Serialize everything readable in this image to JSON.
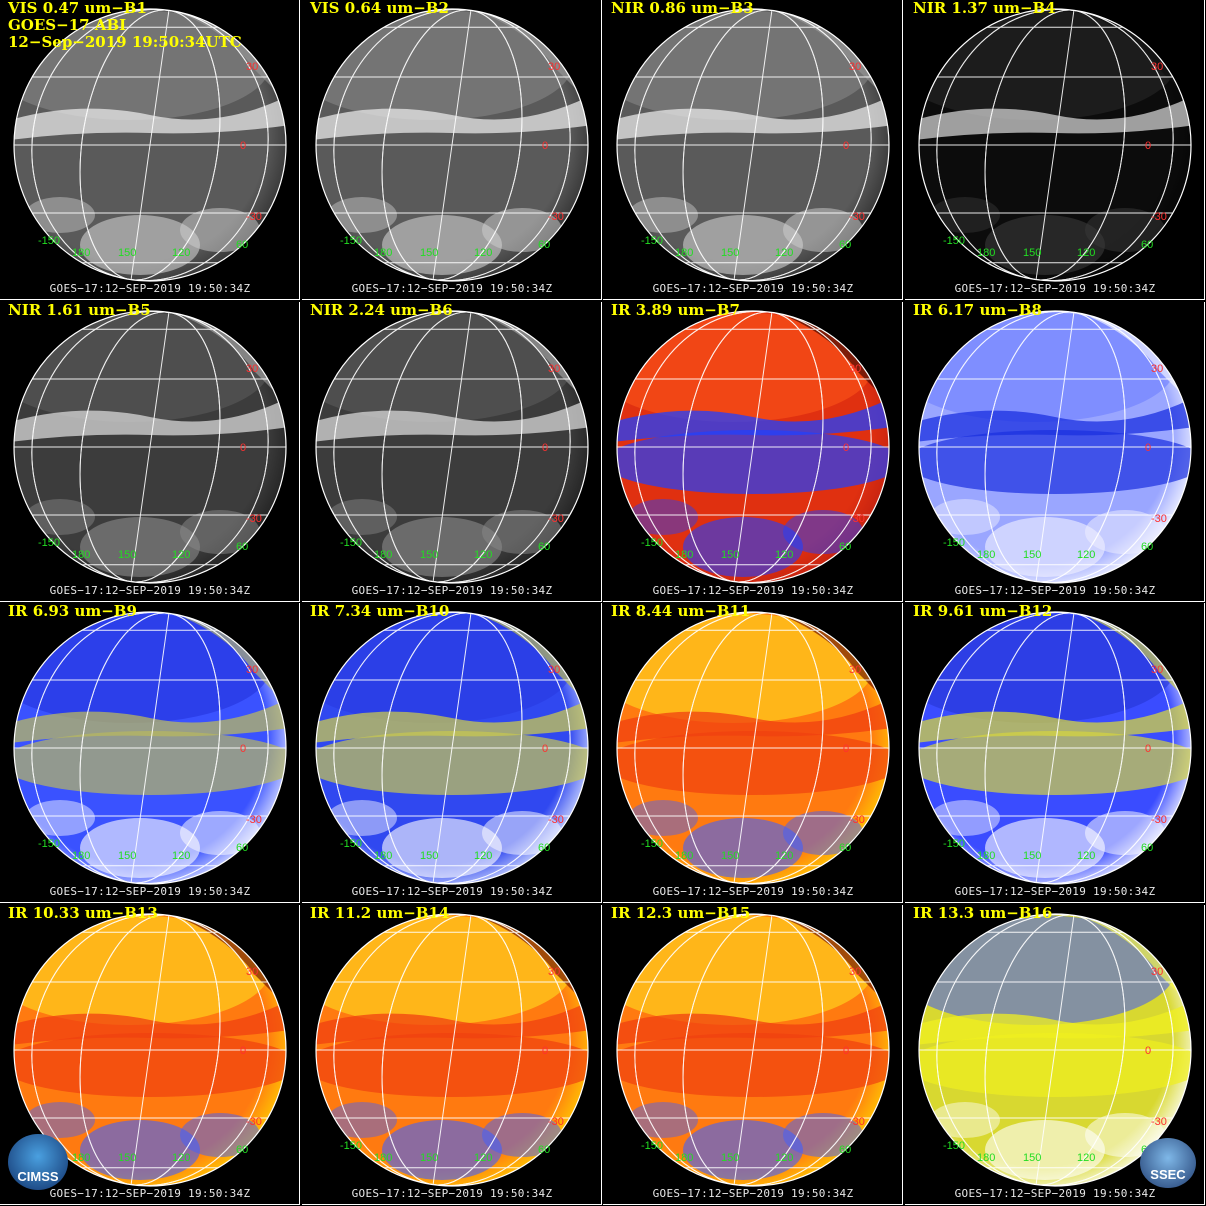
{
  "header": {
    "line2": "GOES−17 ABI",
    "line3": "12−Sep−2019 19:50:34UTC"
  },
  "footer_text": "GOES−17:12−SEP−2019  19:50:34Z",
  "lat_labels": [
    "30",
    "0",
    "-30"
  ],
  "lon_labels": [
    "-150",
    "180",
    "150",
    "120",
    "60"
  ],
  "logos": {
    "left": "CIMSS",
    "right": "SSEC"
  },
  "colors": {
    "title": "#ffff00",
    "lat_label": "#ff3030",
    "lon_label": "#22dd22",
    "grid": "#ffffff"
  },
  "panels": [
    {
      "title": "VIS 0.47 um−B1",
      "style": "vis"
    },
    {
      "title": "VIS 0.64 um−B2",
      "style": "vis"
    },
    {
      "title": "NIR 0.86 um−B3",
      "style": "vis"
    },
    {
      "title": "NIR 1.37 um−B4",
      "style": "dark"
    },
    {
      "title": "NIR 1.61 um−B5",
      "style": "nir"
    },
    {
      "title": "NIR 2.24 um−B6",
      "style": "nir"
    },
    {
      "title": "IR 3.89 um−B7",
      "style": "red"
    },
    {
      "title": "IR 6.17 um−B8",
      "style": "wv8"
    },
    {
      "title": "IR 6.93 um−B9",
      "style": "wv9"
    },
    {
      "title": "IR 7.34 um−B10",
      "style": "wv10"
    },
    {
      "title": "IR 8.44 um−B11",
      "style": "ir"
    },
    {
      "title": "IR 9.61 um−B12",
      "style": "oz"
    },
    {
      "title": "IR 10.33 um−B13",
      "style": "ir"
    },
    {
      "title": "IR 11.2 um−B14",
      "style": "ir"
    },
    {
      "title": "IR 12.3 um−B15",
      "style": "ir"
    },
    {
      "title": "IR 13.3 um−B16",
      "style": "co2"
    }
  ]
}
